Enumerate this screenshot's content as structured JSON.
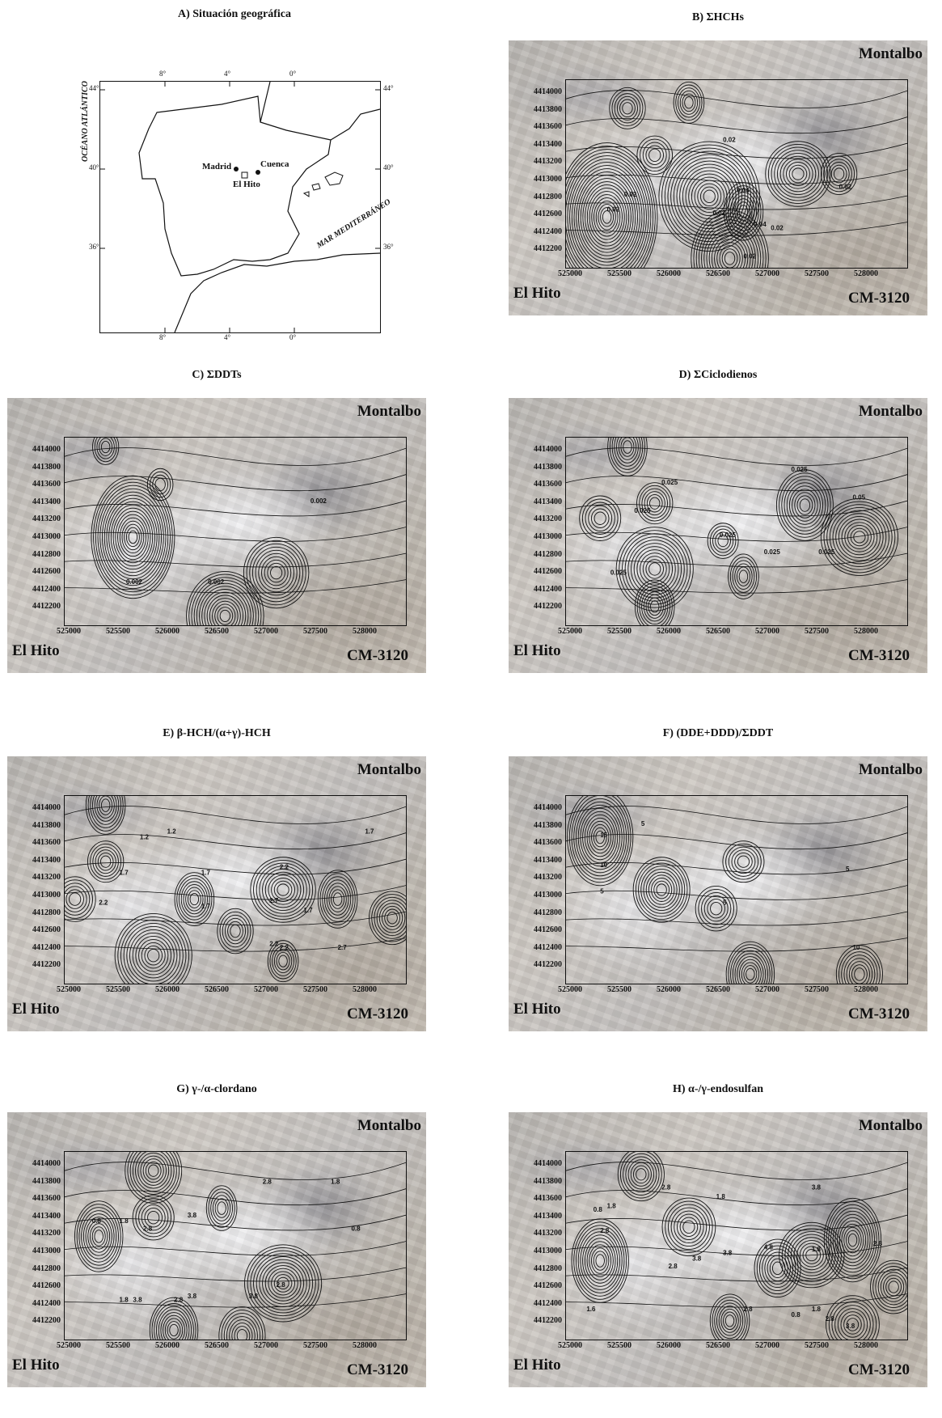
{
  "panel_a": {
    "title": "A) Situación geográfica",
    "lat_labels": [
      "44°",
      "40°",
      "36°"
    ],
    "lon_labels": [
      "8°",
      "4°",
      "0°"
    ],
    "places": {
      "madrid": "Madrid",
      "cuenca": "Cuenca",
      "el_hito": "El Hito"
    },
    "seas": {
      "atlantic": "OCÉANO ATLÁNTICO",
      "mediterranean": "MAR MEDITERRÁNEO"
    }
  },
  "map_common": {
    "top_right_label": "Montalbo",
    "bottom_left_label": "El Hito",
    "bottom_right_label": "CM-3120",
    "y_ticks": [
      "4414000",
      "4413800",
      "4413600",
      "4413400",
      "4413200",
      "4413000",
      "4412800",
      "4412600",
      "4412400",
      "4412200"
    ],
    "x_ticks": [
      "525000",
      "525500",
      "526000",
      "526500",
      "527000",
      "527500",
      "528000"
    ]
  },
  "maps": [
    {
      "key": "B",
      "title": "B) ΣHCHs",
      "contour_labels": [
        "0.02",
        "0.02",
        "0.02",
        "0.02",
        "0.04",
        "0.04",
        "0.02",
        "0.02",
        "0.02"
      ]
    },
    {
      "key": "C",
      "title": "C) ΣDDTs",
      "contour_labels": [
        "0.002",
        "0.002",
        "0.002"
      ]
    },
    {
      "key": "D",
      "title": "D) ΣCiclodienos",
      "contour_labels": [
        "0.025",
        "0.025",
        "0.025",
        "0.025",
        "0.025",
        "0.025",
        "0.05",
        "0.025"
      ]
    },
    {
      "key": "E",
      "title": "E) β-HCH/(α+γ)-HCH",
      "contour_labels": [
        "1.7",
        "1.2",
        "1.2",
        "1.7",
        "2.2",
        "2.7",
        "1.7",
        "2.2",
        "2.2",
        "1.7",
        "2.7",
        "1.7",
        "2.2"
      ]
    },
    {
      "key": "F",
      "title": "F) (DDE+DDD)/ΣDDT",
      "contour_labels": [
        "15",
        "10",
        "5",
        "5",
        "5",
        "5",
        "10"
      ]
    },
    {
      "key": "G",
      "title": "G) γ-/α-clordano",
      "contour_labels": [
        "0.8",
        "1.8",
        "2.8",
        "3.8",
        "3.8",
        "2.8",
        "1.8",
        "0.8",
        "1.8",
        "2.8",
        "3.8",
        "2.8",
        "3.8"
      ]
    },
    {
      "key": "H",
      "title": "H) α-/γ-endosulfan",
      "contour_labels": [
        "0.8",
        "1.8",
        "2.8",
        "3.8",
        "2.8",
        "3.8",
        "4.8",
        "1.8",
        "2.8",
        "1.6",
        "0.8",
        "1.8",
        "2.8",
        "3.8",
        "2.8",
        "1.8",
        "2.8",
        "3.8"
      ]
    }
  ]
}
